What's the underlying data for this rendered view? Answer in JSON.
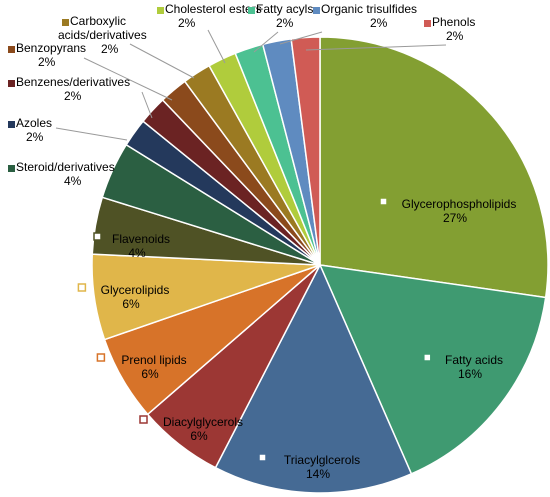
{
  "chart_data": {
    "type": "pie",
    "title": "",
    "slices": [
      {
        "label": "Glycerophospholipids",
        "value": 27,
        "value_label": "27%",
        "color": "#839f32"
      },
      {
        "label": "Fatty acids",
        "value": 16,
        "value_label": "16%",
        "color": "#3f9a71"
      },
      {
        "label": "Triacylglcerols",
        "value": 14,
        "value_label": "14%",
        "color": "#456a94"
      },
      {
        "label": "Diacylglycerols",
        "value": 6,
        "value_label": "6%",
        "color": "#9c3734"
      },
      {
        "label": "Prenol lipids",
        "value": 6,
        "value_label": "6%",
        "color": "#d77329"
      },
      {
        "label": "Glycerolipids",
        "value": 6,
        "value_label": "6%",
        "color": "#e0b64a"
      },
      {
        "label": "Flavenoids",
        "value": 4,
        "value_label": "4%",
        "color": "#4f5225"
      },
      {
        "label": "Steroid/derivatives",
        "value": 4,
        "value_label": "4%",
        "color": "#2b5f42"
      },
      {
        "label": "Azoles",
        "value": 2,
        "value_label": "2%",
        "color": "#24395c"
      },
      {
        "label": "Benzenes/derivatives",
        "value": 2,
        "value_label": "2%",
        "color": "#6b2323"
      },
      {
        "label": "Benzopyrans",
        "value": 2,
        "value_label": "2%",
        "color": "#8b4a1c"
      },
      {
        "label": "Carboxylic acids/derivatives",
        "value": 2,
        "value_label": "2%",
        "color": "#9b7a22"
      },
      {
        "label": "Cholesterol esters",
        "value": 2,
        "value_label": "2%",
        "color": "#b0cc3c"
      },
      {
        "label": "Fatty acyls",
        "value": 2,
        "value_label": "2%",
        "color": "#4cc192"
      },
      {
        "label": "Organic trisulfides",
        "value": 2,
        "value_label": "2%",
        "color": "#5f8bc0"
      },
      {
        "label": "Phenols",
        "value": 2,
        "value_label": "2%",
        "color": "#d05b55"
      }
    ]
  }
}
